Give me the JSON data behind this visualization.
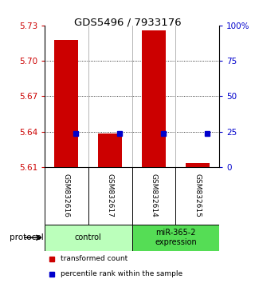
{
  "title": "GDS5496 / 7933176",
  "categories": [
    "GSM832616",
    "GSM832617",
    "GSM832614",
    "GSM832615"
  ],
  "red_bar_values": [
    5.718,
    5.638,
    5.726,
    5.613
  ],
  "blue_square_values": [
    5.638,
    5.638,
    5.638,
    5.638
  ],
  "bar_bottom": 5.61,
  "ylim_left": [
    5.61,
    5.73
  ],
  "ylim_right": [
    0,
    100
  ],
  "left_yticks": [
    5.61,
    5.64,
    5.67,
    5.7,
    5.73
  ],
  "right_yticks": [
    0,
    25,
    50,
    75,
    100
  ],
  "right_yticklabels": [
    "0",
    "25",
    "50",
    "75",
    "100%"
  ],
  "left_tick_color": "#cc0000",
  "right_tick_color": "#0000cc",
  "bar_color": "#cc0000",
  "blue_color": "#0000cc",
  "groups": [
    {
      "label": "control",
      "indices": [
        0,
        1
      ],
      "color": "#bbffbb"
    },
    {
      "label": "miR-365-2\nexpression",
      "indices": [
        2,
        3
      ],
      "color": "#55dd55"
    }
  ],
  "protocol_label": "protocol",
  "legend_items": [
    {
      "color": "#cc0000",
      "label": "transformed count"
    },
    {
      "color": "#0000cc",
      "label": "percentile rank within the sample"
    }
  ],
  "bar_width": 0.55,
  "dotted_yticks": [
    5.64,
    5.67,
    5.7
  ],
  "divider_color": "#aaaaaa",
  "sample_bg": "#cccccc",
  "bg_color": "#ffffff"
}
